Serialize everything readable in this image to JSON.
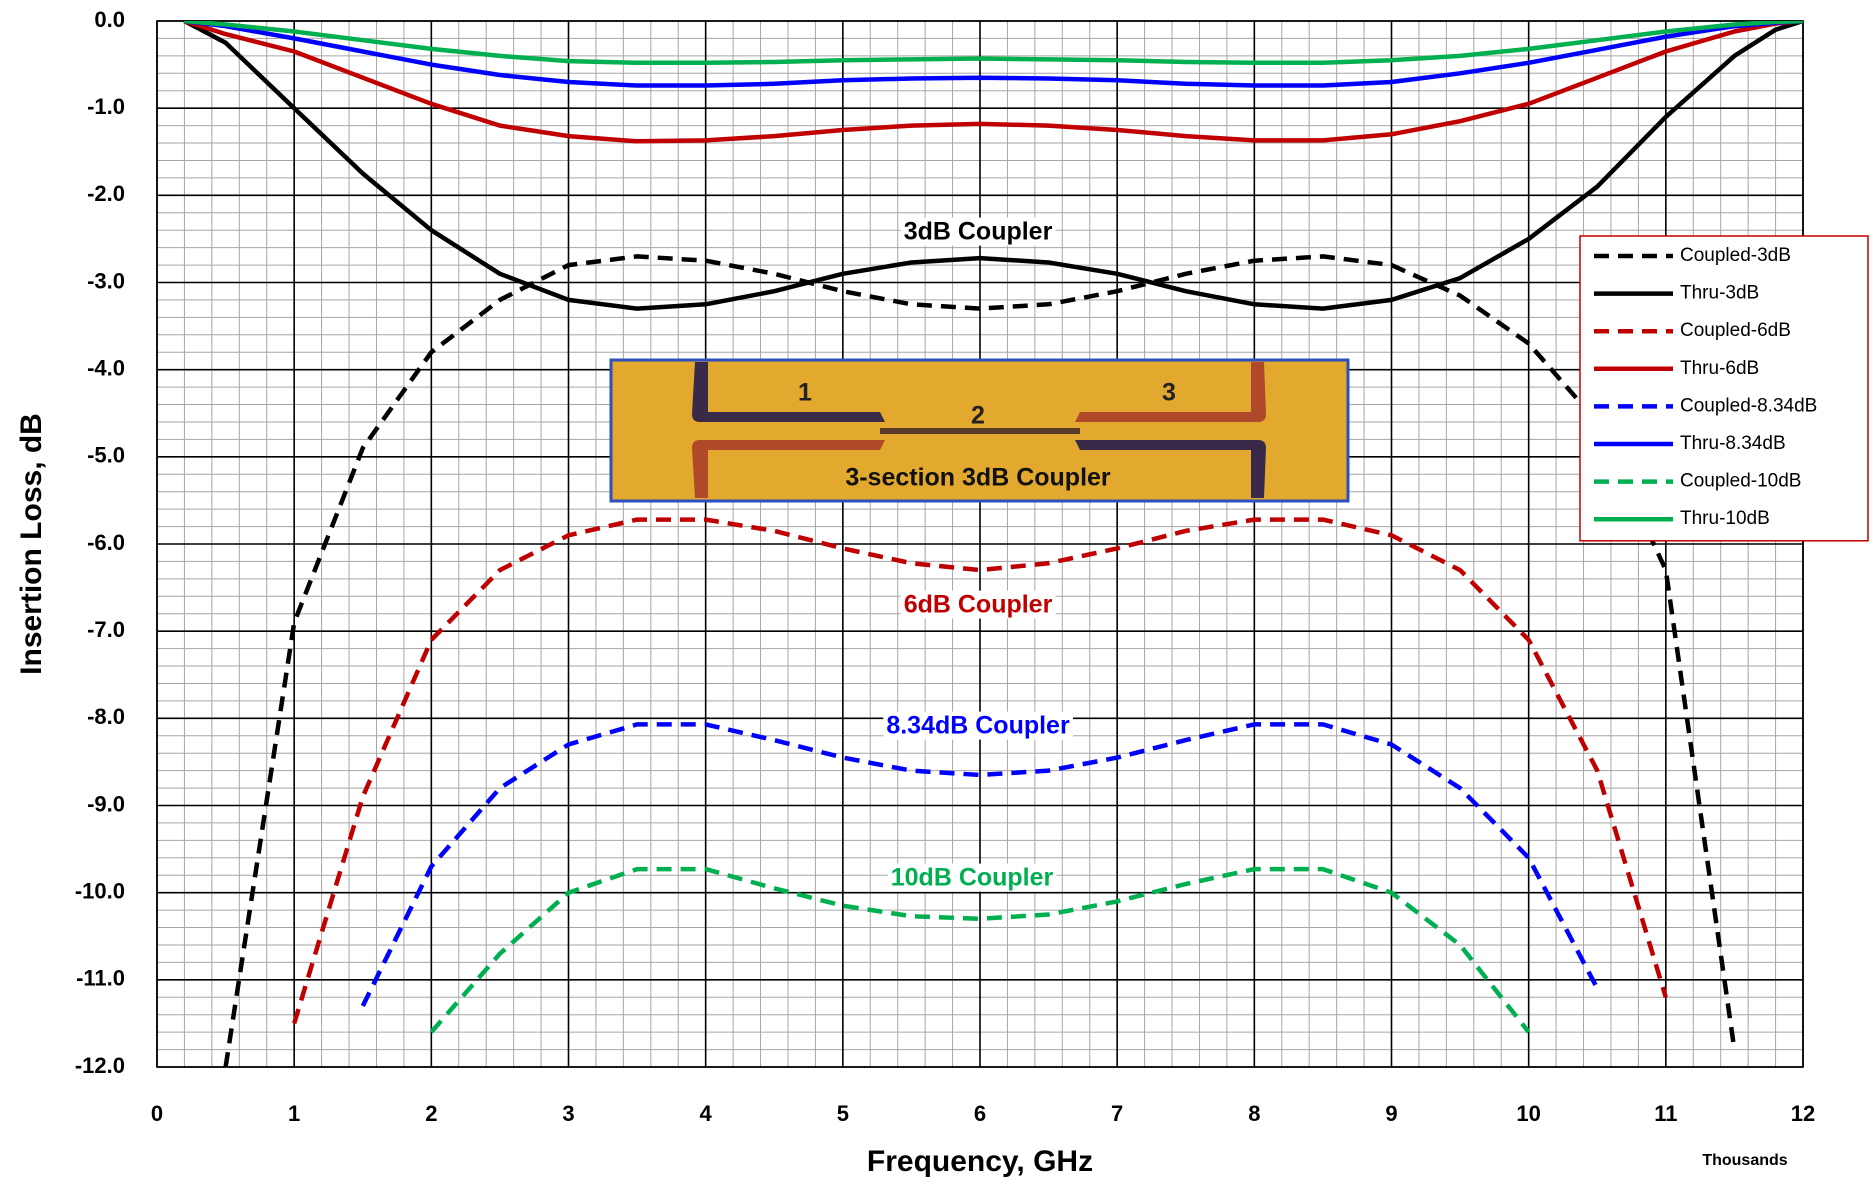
{
  "chart_data": {
    "type": "line",
    "x_label": "Frequency, GHz",
    "y_label": "Insertion Loss, dB",
    "x_unit_note": "Thousands",
    "x": [
      0.2,
      0.5,
      1,
      1.5,
      2,
      2.5,
      3,
      3.5,
      4,
      4.5,
      5,
      5.5,
      6,
      6.5,
      7,
      7.5,
      8,
      8.5,
      9,
      9.5,
      10,
      10.5,
      11,
      11.5,
      11.8,
      12
    ],
    "xlim": [
      0,
      12
    ],
    "xticks": [
      0,
      1,
      2,
      3,
      4,
      5,
      6,
      7,
      8,
      9,
      10,
      11,
      12
    ],
    "ylim": [
      -12,
      0
    ],
    "yticks": [
      {
        "value": 0,
        "label": "0.0"
      },
      {
        "value": -1,
        "label": "-1.0"
      },
      {
        "value": -2,
        "label": "-2.0"
      },
      {
        "value": -3,
        "label": "-3.0"
      },
      {
        "value": -4,
        "label": "-4.0"
      },
      {
        "value": -5,
        "label": "-5.0"
      },
      {
        "value": -6,
        "label": "-6.0"
      },
      {
        "value": -7,
        "label": "-7.0"
      },
      {
        "value": -8,
        "label": "-8.0"
      },
      {
        "value": -9,
        "label": "-9.0"
      },
      {
        "value": -10,
        "label": "-10.0"
      },
      {
        "value": -11,
        "label": "-11.0"
      },
      {
        "value": -12,
        "label": "-12.0"
      }
    ],
    "grid": true,
    "minor_grid_divisions": 5,
    "legend": "right",
    "series": [
      {
        "name": "Coupled-3dB",
        "color": "#000000",
        "dashed": true,
        "values": [
          null,
          -12,
          -6.9,
          -4.9,
          -3.8,
          -3.2,
          -2.8,
          -2.7,
          -2.75,
          -2.9,
          -3.1,
          -3.25,
          -3.3,
          -3.25,
          -3.1,
          -2.9,
          -2.75,
          -2.7,
          -2.8,
          -3.15,
          -3.7,
          -4.6,
          -6.3,
          -11.8,
          null,
          null
        ]
      },
      {
        "name": "Thru-3dB",
        "color": "#000000",
        "dashed": false,
        "values": [
          0,
          -0.25,
          -1.0,
          -1.75,
          -2.4,
          -2.9,
          -3.2,
          -3.3,
          -3.25,
          -3.1,
          -2.9,
          -2.77,
          -2.72,
          -2.77,
          -2.9,
          -3.1,
          -3.25,
          -3.3,
          -3.2,
          -2.95,
          -2.5,
          -1.9,
          -1.1,
          -0.4,
          -0.1,
          0
        ]
      },
      {
        "name": "Coupled-6dB",
        "color": "#c00000",
        "dashed": true,
        "values": [
          null,
          null,
          -11.5,
          -8.9,
          -7.1,
          -6.3,
          -5.9,
          -5.72,
          -5.72,
          -5.85,
          -6.05,
          -6.22,
          -6.3,
          -6.22,
          -6.05,
          -5.85,
          -5.72,
          -5.72,
          -5.9,
          -6.3,
          -7.1,
          -8.6,
          -11.2,
          null,
          null,
          null
        ]
      },
      {
        "name": "Thru-6dB",
        "color": "#c00000",
        "dashed": false,
        "values": [
          0,
          -0.15,
          -0.35,
          -0.65,
          -0.95,
          -1.2,
          -1.32,
          -1.38,
          -1.37,
          -1.32,
          -1.25,
          -1.2,
          -1.18,
          -1.2,
          -1.25,
          -1.32,
          -1.37,
          -1.37,
          -1.3,
          -1.15,
          -0.95,
          -0.65,
          -0.35,
          -0.12,
          -0.03,
          0
        ]
      },
      {
        "name": "Coupled-8.34dB",
        "color": "#0000ff",
        "dashed": true,
        "values": [
          null,
          null,
          null,
          -11.3,
          -9.7,
          -8.8,
          -8.3,
          -8.07,
          -8.07,
          -8.25,
          -8.45,
          -8.6,
          -8.65,
          -8.6,
          -8.45,
          -8.25,
          -8.07,
          -8.07,
          -8.3,
          -8.8,
          -9.6,
          -11.1,
          null,
          null,
          null,
          null
        ]
      },
      {
        "name": "Thru-8.34dB",
        "color": "#0000ff",
        "dashed": false,
        "values": [
          0,
          -0.06,
          -0.2,
          -0.35,
          -0.5,
          -0.62,
          -0.7,
          -0.74,
          -0.74,
          -0.72,
          -0.68,
          -0.66,
          -0.65,
          -0.66,
          -0.68,
          -0.72,
          -0.74,
          -0.74,
          -0.7,
          -0.6,
          -0.48,
          -0.33,
          -0.18,
          -0.06,
          -0.02,
          0
        ]
      },
      {
        "name": "Coupled-10dB",
        "color": "#00b050",
        "dashed": true,
        "values": [
          null,
          null,
          null,
          null,
          -11.6,
          -10.7,
          -10.0,
          -9.73,
          -9.73,
          -9.95,
          -10.15,
          -10.27,
          -10.3,
          -10.25,
          -10.1,
          -9.9,
          -9.73,
          -9.73,
          -10.0,
          -10.6,
          -11.6,
          null,
          null,
          null,
          null,
          null
        ]
      },
      {
        "name": "Thru-10dB",
        "color": "#00b050",
        "dashed": false,
        "values": [
          0,
          -0.04,
          -0.12,
          -0.22,
          -0.32,
          -0.4,
          -0.46,
          -0.48,
          -0.48,
          -0.47,
          -0.45,
          -0.44,
          -0.43,
          -0.44,
          -0.45,
          -0.47,
          -0.48,
          -0.48,
          -0.45,
          -0.4,
          -0.32,
          -0.22,
          -0.12,
          -0.04,
          -0.01,
          0
        ]
      }
    ],
    "annotations": [
      {
        "text": "3dB Coupler",
        "color": "#000000"
      },
      {
        "text": "6dB Coupler",
        "color": "#c00000"
      },
      {
        "text": "8.34dB Coupler",
        "color": "#0000ff"
      },
      {
        "text": "10dB Coupler",
        "color": "#00b050"
      }
    ],
    "inset": {
      "port_labels": [
        "1",
        "2",
        "3"
      ],
      "caption": "3-section 3dB Coupler"
    }
  }
}
